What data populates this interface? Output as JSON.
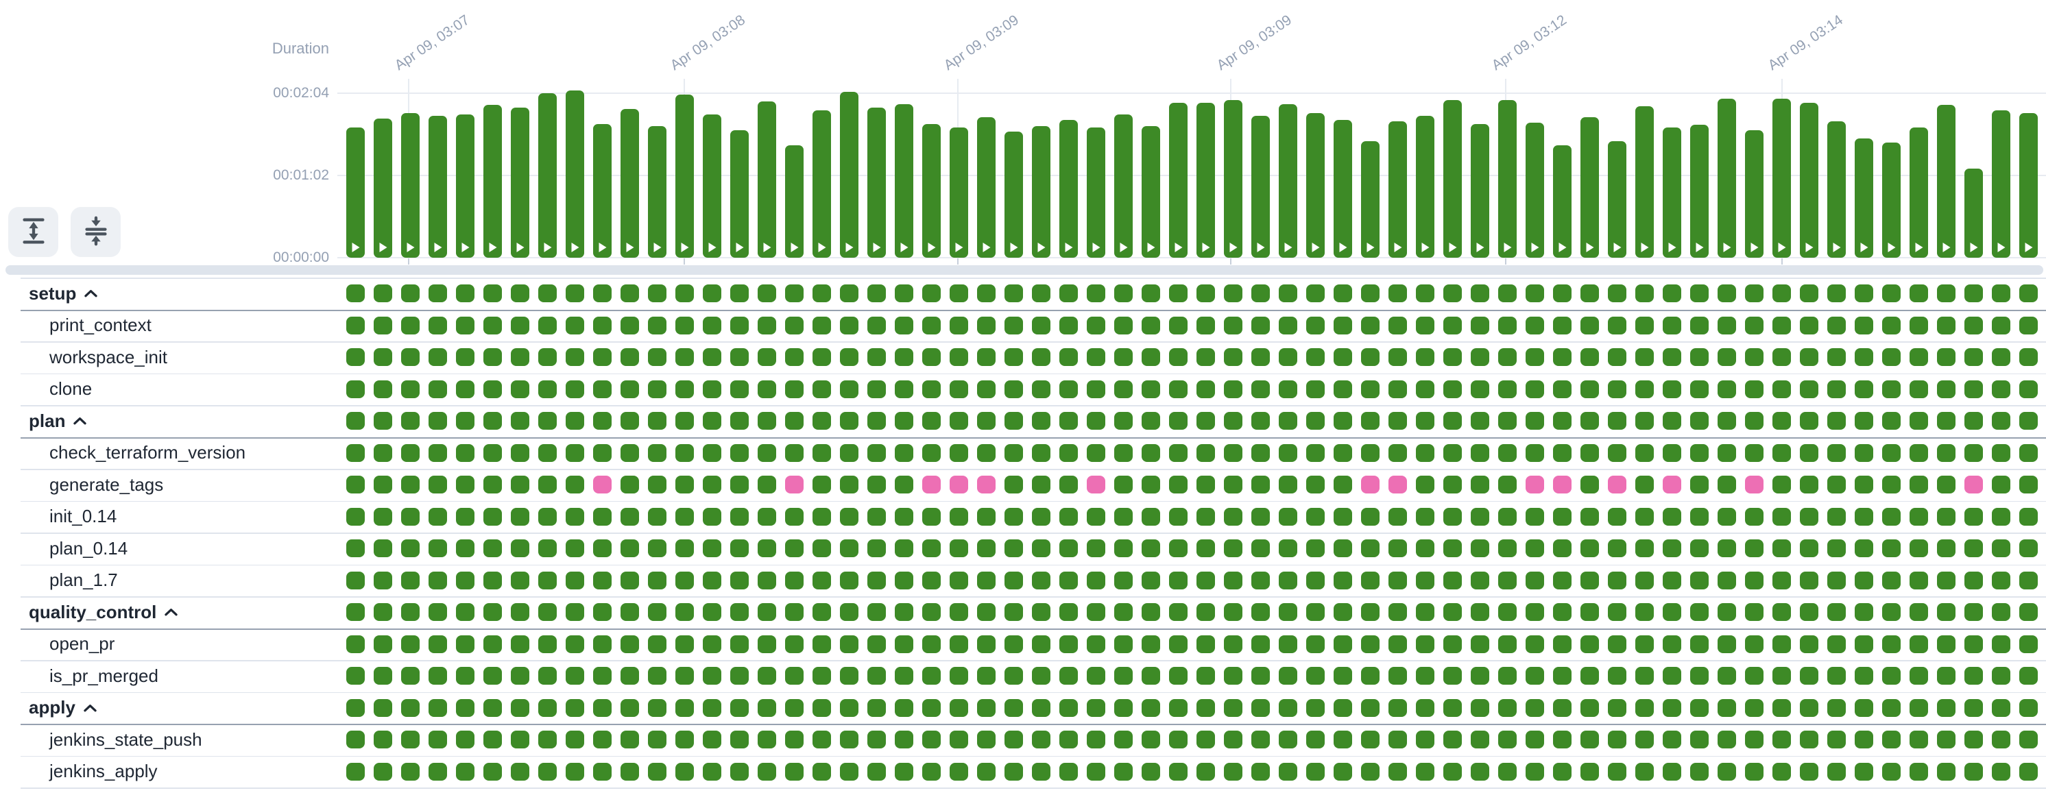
{
  "colors": {
    "success": "#3d8a26",
    "failure": "#ed6fb4",
    "axis_text": "#94a0b3",
    "stage_text": "#1f2733",
    "grid_line": "#e7ebf1",
    "row_separator": "#dfe4ec",
    "group_separator": "#97a1b0",
    "scrollband": "#dee4ec",
    "button_bg": "#edf0f4",
    "button_icon": "#4b545e",
    "bar_glyph": "#ffffff"
  },
  "toolbar": {
    "buttons": [
      {
        "id": "expand-rows-button",
        "icon": "unfold-vertical-icon"
      },
      {
        "id": "collapse-rows-button",
        "icon": "fold-vertical-icon"
      }
    ]
  },
  "chart_data": {
    "type": "bar",
    "title": "Duration",
    "ylabel": "Duration",
    "xlabel": "",
    "grid": "on",
    "legend": "none",
    "ylim_seconds": [
      0,
      128
    ],
    "y_ticks": [
      {
        "label": "00:02:04",
        "seconds": 124
      },
      {
        "label": "00:01:02",
        "seconds": 62
      },
      {
        "label": "00:00:00",
        "seconds": 0
      }
    ],
    "x_ticks": [
      {
        "label": "Apr 09, 03:07",
        "x": 595
      },
      {
        "label": "Apr 09, 03:08",
        "x": 997
      },
      {
        "label": "Apr 09, 03:09",
        "x": 1396
      },
      {
        "label": "Apr 09, 03:09",
        "x": 1794
      },
      {
        "label": "Apr 09, 03:12",
        "x": 2195
      },
      {
        "label": "Apr 09, 03:14",
        "x": 2598
      }
    ],
    "bar_glyph": "play-icon",
    "values_seconds": [
      98,
      105,
      109,
      107,
      108,
      115,
      113,
      124,
      126,
      101,
      112,
      99,
      123,
      108,
      96,
      118,
      85,
      111,
      125,
      113,
      116,
      101,
      98,
      106,
      95,
      99,
      104,
      98,
      108,
      99,
      117,
      117,
      119,
      107,
      116,
      109,
      104,
      88,
      103,
      107,
      119,
      101,
      119,
      102,
      85,
      106,
      88,
      114,
      98,
      100,
      120,
      96,
      120,
      117,
      103,
      90,
      87,
      98,
      115,
      67,
      111,
      109
    ]
  },
  "stages": {
    "columns": 62,
    "success_status": "success",
    "failure_status": "failure",
    "rows": [
      {
        "label": "setup",
        "type": "group",
        "collapse_icon": "chevron-up-icon",
        "fail_columns": []
      },
      {
        "label": "print_context",
        "type": "child",
        "fail_columns": []
      },
      {
        "label": "workspace_init",
        "type": "child",
        "fail_columns": []
      },
      {
        "label": "clone",
        "type": "child",
        "fail_columns": []
      },
      {
        "label": "plan",
        "type": "group",
        "collapse_icon": "chevron-up-icon",
        "fail_columns": []
      },
      {
        "label": "check_terraform_version",
        "type": "child",
        "fail_columns": []
      },
      {
        "label": "generate_tags",
        "type": "child",
        "fail_columns": [
          10,
          17,
          22,
          23,
          24,
          28,
          38,
          39,
          44,
          45,
          47,
          49,
          52,
          60
        ]
      },
      {
        "label": "init_0.14",
        "type": "child",
        "fail_columns": []
      },
      {
        "label": "plan_0.14",
        "type": "child",
        "fail_columns": []
      },
      {
        "label": "plan_1.7",
        "type": "child",
        "fail_columns": []
      },
      {
        "label": "quality_control",
        "type": "group",
        "collapse_icon": "chevron-up-icon",
        "fail_columns": []
      },
      {
        "label": "open_pr",
        "type": "child",
        "fail_columns": []
      },
      {
        "label": "is_pr_merged",
        "type": "child",
        "fail_columns": []
      },
      {
        "label": "apply",
        "type": "group",
        "collapse_icon": "chevron-up-icon",
        "fail_columns": []
      },
      {
        "label": "jenkins_state_push",
        "type": "child",
        "fail_columns": []
      },
      {
        "label": "jenkins_apply",
        "type": "child",
        "fail_columns": []
      }
    ]
  }
}
